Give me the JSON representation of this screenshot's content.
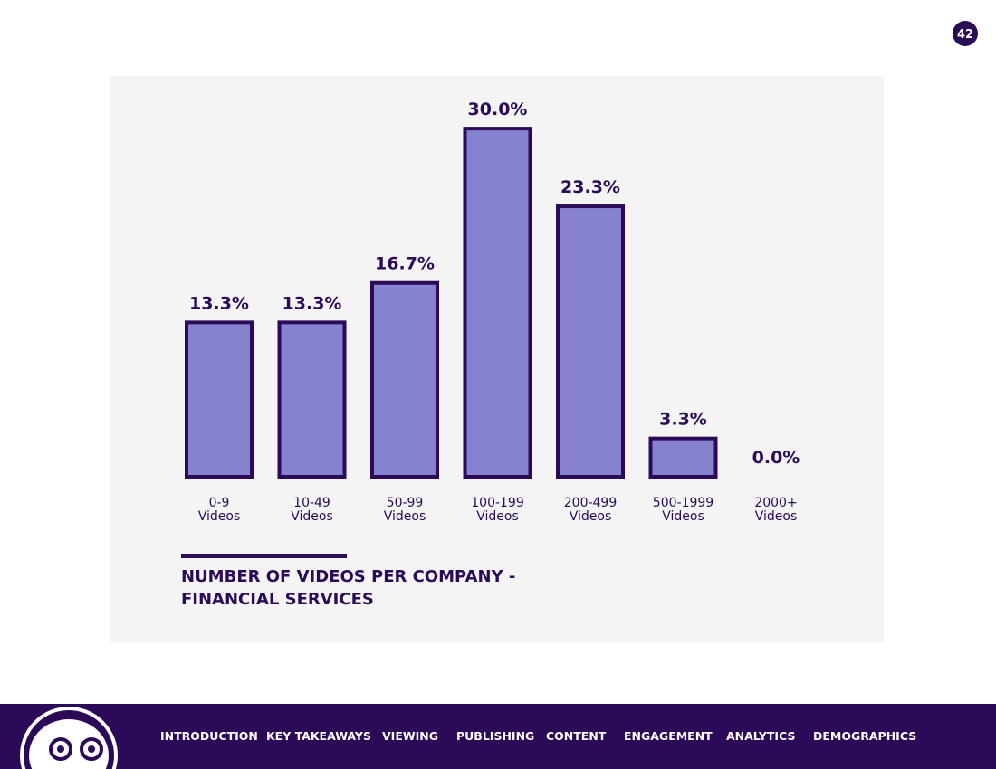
{
  "page_number": "42",
  "nav": [
    "INTRODUCTION",
    "KEY TAKEAWAYS",
    "VIEWING",
    "PUBLISHING",
    "CONTENT",
    "ENGAGEMENT",
    "ANALYTICS",
    "DEMOGRAPHICS"
  ],
  "chart_data": {
    "type": "bar",
    "title": "NUMBER OF VIDEOS PER COMPANY -\nFINANCIAL SERVICES",
    "categories": [
      "0-9\nVideos",
      "10-49\nVideos",
      "50-99\nVideos",
      "100-199\nVideos",
      "200-499\nVideos",
      "500-1999\nVideos",
      "2000+\nVideos"
    ],
    "values": [
      13.3,
      13.3,
      16.7,
      30.0,
      23.3,
      3.3,
      0.0
    ],
    "value_labels": [
      "13.3%",
      "13.3%",
      "16.7%",
      "30.0%",
      "23.3%",
      "3.3%",
      "0.0%"
    ],
    "color": "#8583cf"
  }
}
